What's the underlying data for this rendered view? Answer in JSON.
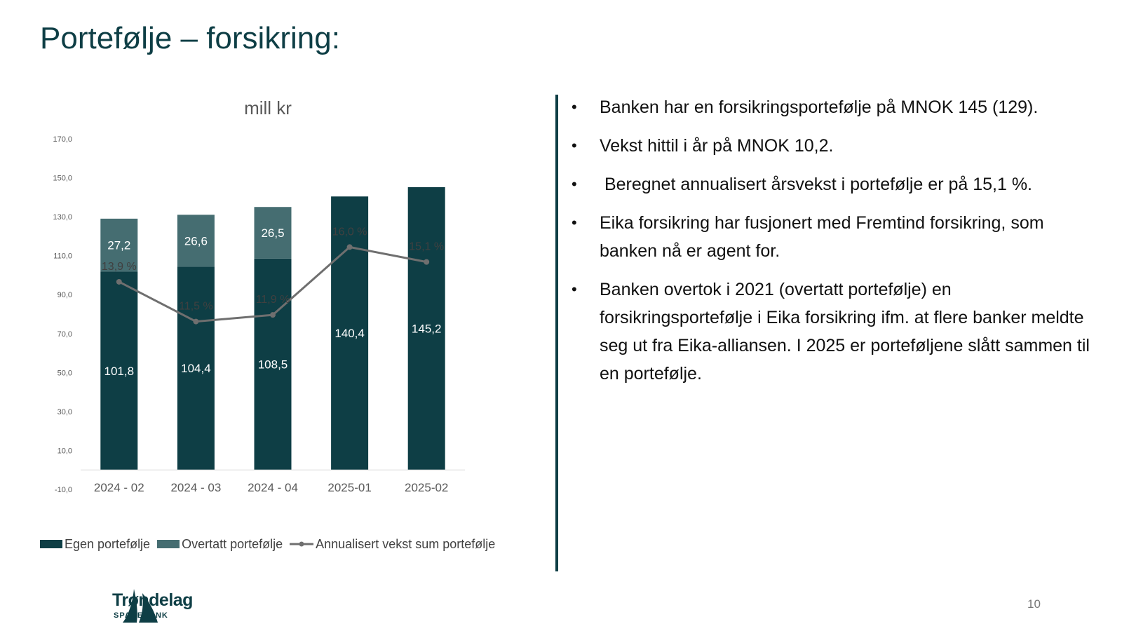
{
  "slide": {
    "title": "Portefølje – forsikring:",
    "page_number": "10"
  },
  "bullets": [
    "Banken har en forsikringsportefølje på MNOK 145 (129).",
    "Vekst hittil i år på MNOK 10,2.",
    " Beregnet annualisert årsvekst i portefølje er på 15,1 %.",
    "Eika forsikring har fusjonert med Fremtind forsikring, som banken nå er agent for.",
    "Banken overtok i 2021 (overtatt portefølje) en forsikringsportefølje i Eika forsikring ifm. at flere banker meldte seg ut fra Eika-alliansen. I 2025 er porteføljene slått sammen til en portefølje."
  ],
  "bullet_symbol": "•",
  "logo": {
    "name": "Trøndelag",
    "subtitle": "SPAREBANK",
    "icon": "sail-logo-icon"
  },
  "colors": {
    "egen": "#0e3e45",
    "overtatt": "#456d71",
    "line": "#6f6f6f",
    "accent": "#0e3e45"
  },
  "chart_data": {
    "type": "bar",
    "stacked": true,
    "title": "mill kr",
    "categories": [
      "2024 - 02",
      "2024 - 03",
      "2024 - 04",
      "2025-01",
      "2025-02"
    ],
    "series": [
      {
        "name": "Egen portefølje",
        "type": "bar",
        "values": [
          101.8,
          104.4,
          108.5,
          140.4,
          145.2
        ],
        "labels": [
          "101,8",
          "104,4",
          "108,5",
          "140,4",
          "145,2"
        ]
      },
      {
        "name": "Overtatt portefølje",
        "type": "bar",
        "values": [
          27.2,
          26.6,
          26.5,
          null,
          null
        ],
        "labels": [
          "27,2",
          "26,6",
          "26,5",
          "",
          ""
        ]
      },
      {
        "name": "Annualisert vekst sum portefølje",
        "type": "line",
        "values": [
          13.9,
          11.5,
          11.9,
          16.0,
          15.1
        ],
        "labels": [
          "13,9 %",
          "11,5 %",
          "11,9 %",
          "16,0 %",
          "15,1 %"
        ]
      }
    ],
    "yticks": [
      "-10,0",
      "10,0",
      "30,0",
      "50,0",
      "70,0",
      "90,0",
      "110,0",
      "130,0",
      "150,0",
      "170,0"
    ],
    "ylim": [
      -10,
      170
    ],
    "line_axis_range": [
      0,
      25
    ],
    "grid": false,
    "legend_position": "bottom"
  }
}
